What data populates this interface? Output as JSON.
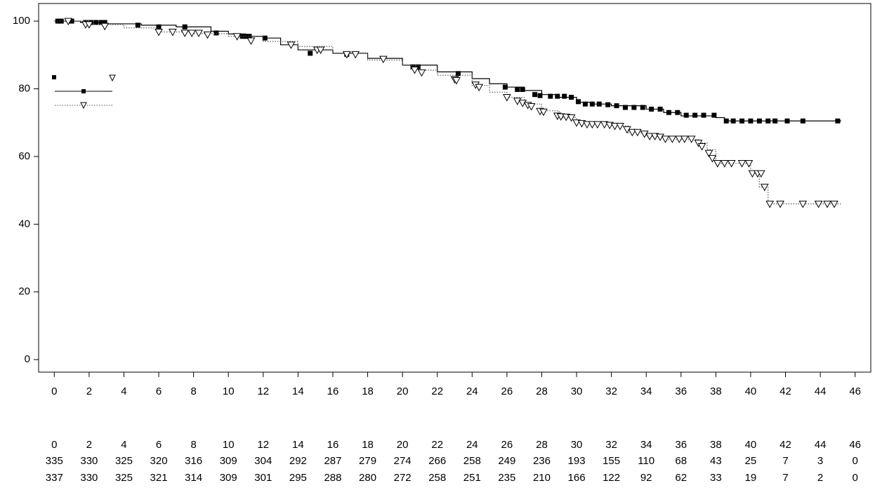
{
  "chart_data": {
    "type": "km",
    "xlim": [
      -0.9,
      46.9
    ],
    "ylim": [
      -3.7,
      105.2
    ],
    "xticks": [
      0,
      2,
      4,
      6,
      8,
      10,
      12,
      14,
      16,
      18,
      20,
      22,
      24,
      26,
      28,
      30,
      32,
      34,
      36,
      38,
      40,
      42,
      44,
      46
    ],
    "yticks": [
      0,
      20,
      40,
      60,
      80,
      100
    ],
    "series": [
      {
        "color": "#000000",
        "style": "solid",
        "marker": "square",
        "x": [
          0,
          1.5,
          3,
          5,
          7,
          9,
          10,
          11,
          12,
          13,
          14,
          16,
          18,
          20,
          22,
          24,
          25,
          26,
          27,
          28,
          29,
          30,
          31,
          32,
          34,
          35,
          36,
          38,
          38.5,
          45.2
        ],
        "values": [
          100,
          99.6,
          99.2,
          98.8,
          98.3,
          97,
          96.2,
          95.5,
          95,
          93,
          91.5,
          90.5,
          89,
          87,
          85,
          83,
          81.5,
          80.5,
          79.5,
          78.3,
          77.5,
          76,
          75.5,
          75,
          74,
          73,
          72,
          71.5,
          70.5,
          70.5
        ],
        "censored": {
          "x": [
            0.2,
            0.4,
            1,
            1.8,
            2.1,
            2.4,
            2.7,
            2.9,
            4.8,
            6,
            7.5,
            9.3,
            10.8,
            11,
            11.2,
            12.1,
            14.7,
            16.8,
            20.6,
            20.9,
            23.2,
            25.9,
            26.6,
            26.9,
            27.6,
            27.9,
            28.5,
            28.9,
            29.3,
            29.7,
            30.1,
            30.5,
            30.9,
            31.3,
            31.8,
            32.3,
            32.8,
            33.3,
            33.8,
            34.3,
            34.8,
            35.3,
            35.8,
            36.3,
            36.8,
            37.3,
            37.9,
            38.6,
            39,
            39.5,
            40,
            40.5,
            41,
            41.4,
            42.1,
            43,
            45
          ],
          "values": [
            100,
            100,
            100,
            99.6,
            99.6,
            99.6,
            99.6,
            99.6,
            98.8,
            98.3,
            98.3,
            96.5,
            95.5,
            95.5,
            95.5,
            95,
            90.5,
            90.2,
            86.5,
            86.5,
            84.5,
            80.5,
            79.8,
            79.8,
            78.3,
            78,
            77.8,
            77.8,
            77.8,
            77.5,
            76.2,
            75.5,
            75.5,
            75.5,
            75.3,
            75,
            74.5,
            74.5,
            74.5,
            74,
            74,
            73,
            73,
            72.2,
            72.2,
            72.2,
            72.2,
            70.5,
            70.5,
            70.5,
            70.5,
            70.5,
            70.5,
            70.5,
            70.5,
            70.5,
            70.5
          ]
        }
      },
      {
        "color": "#555555",
        "style": "dotted",
        "marker": "triangle",
        "x": [
          0,
          2,
          4,
          6,
          8,
          10,
          12,
          14,
          16,
          18,
          20,
          21,
          22,
          24,
          25,
          26,
          27,
          28,
          29,
          30,
          32,
          33,
          34,
          35,
          37,
          37.5,
          38,
          40,
          40.5,
          41,
          45.2
        ],
        "values": [
          100,
          99,
          98,
          96.8,
          96.3,
          95.5,
          94,
          92.5,
          90.5,
          88.5,
          87,
          85.5,
          84,
          81,
          79,
          77.5,
          75.5,
          73.5,
          71.5,
          70,
          69,
          67,
          66,
          65,
          64,
          62,
          58,
          55,
          51,
          46,
          46
        ],
        "censored": {
          "x": [
            0.8,
            1.8,
            2,
            2.9,
            6,
            6.8,
            7.5,
            7.9,
            8.3,
            8.8,
            10.5,
            11.3,
            13.6,
            15.1,
            15.3,
            16.8,
            17.3,
            18.9,
            20.7,
            21.1,
            23,
            23.1,
            24.2,
            24.4,
            26,
            26.6,
            26.9,
            27.2,
            27.4,
            27.9,
            28.1,
            28.9,
            29.1,
            29.4,
            29.7,
            30,
            30.3,
            30.6,
            30.9,
            31.2,
            31.6,
            31.9,
            32.2,
            32.5,
            32.9,
            33.2,
            33.5,
            33.9,
            34.2,
            34.5,
            34.8,
            35.1,
            35.5,
            35.9,
            36.2,
            36.6,
            37,
            37.2,
            37.6,
            37.8,
            38.1,
            38.5,
            38.9,
            39.5,
            39.9,
            40.1,
            40.4,
            40.6,
            40.8,
            41.1,
            41.7,
            43,
            43.9,
            44.4,
            44.8
          ],
          "values": [
            100,
            99,
            99,
            98.5,
            96.8,
            96.8,
            96.5,
            96.5,
            96.5,
            96,
            95.5,
            94.2,
            93,
            91.5,
            91.5,
            90.2,
            90.2,
            88.8,
            85.6,
            84.8,
            82.8,
            82.5,
            81.2,
            80.5,
            77.5,
            76.4,
            75.8,
            75.2,
            74.8,
            73.4,
            73.2,
            72,
            71.8,
            71.7,
            71.5,
            70,
            69.8,
            69.5,
            69.5,
            69.5,
            69.5,
            69.3,
            69,
            69,
            68,
            67.2,
            67.2,
            66.7,
            66,
            66,
            65.8,
            65.2,
            65.2,
            65.2,
            65.2,
            65.2,
            64,
            63,
            61,
            59.5,
            58,
            58,
            58,
            58,
            58,
            55,
            55,
            55,
            51,
            46,
            46,
            46,
            46,
            46,
            46
          ]
        }
      }
    ],
    "risk_table": {
      "x": [
        0,
        2,
        4,
        6,
        8,
        10,
        12,
        14,
        16,
        18,
        20,
        22,
        24,
        26,
        28,
        30,
        32,
        34,
        36,
        38,
        40,
        42,
        44,
        46
      ],
      "rows": [
        [
          335,
          330,
          325,
          320,
          316,
          309,
          304,
          292,
          287,
          279,
          274,
          266,
          258,
          249,
          236,
          193,
          155,
          110,
          68,
          43,
          25,
          7,
          3,
          0
        ],
        [
          337,
          330,
          325,
          321,
          314,
          309,
          301,
          295,
          288,
          280,
          272,
          258,
          251,
          235,
          210,
          166,
          122,
          92,
          62,
          33,
          19,
          7,
          2,
          0
        ]
      ]
    }
  }
}
